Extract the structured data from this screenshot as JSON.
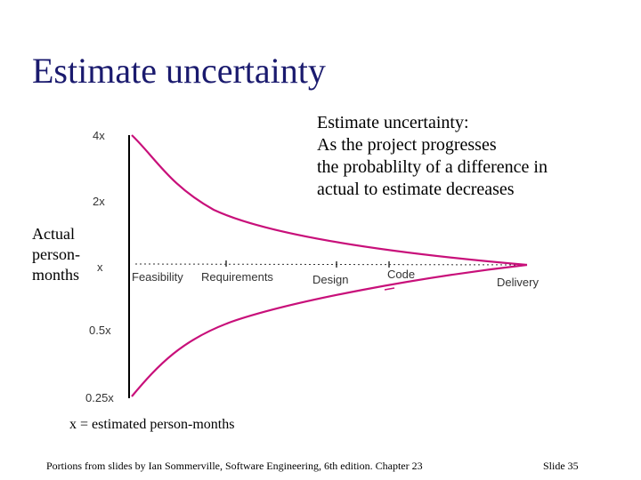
{
  "slide": {
    "title": "Estimate uncertainty",
    "annotation_lines": [
      "Estimate uncertainty:",
      "As the project progresses",
      "the probablilty of a difference in",
      "actual to estimate decreases"
    ],
    "y_axis_title_lines": [
      "Actual",
      "person-",
      "months"
    ],
    "legend_note": "x = estimated person-months",
    "footer_left": "Portions from slides by Ian Sommerville, Software Engineering, 6th edition. Chapter 23",
    "footer_right": "Slide 35"
  },
  "diagram": {
    "y_ticks": [
      "4x",
      "2x",
      "x",
      "0.5x",
      "0.25x"
    ],
    "phases": [
      "Feasibility",
      "Requirements",
      "Design",
      "Code",
      "Delivery"
    ],
    "curve_color": "#c8107a"
  }
}
